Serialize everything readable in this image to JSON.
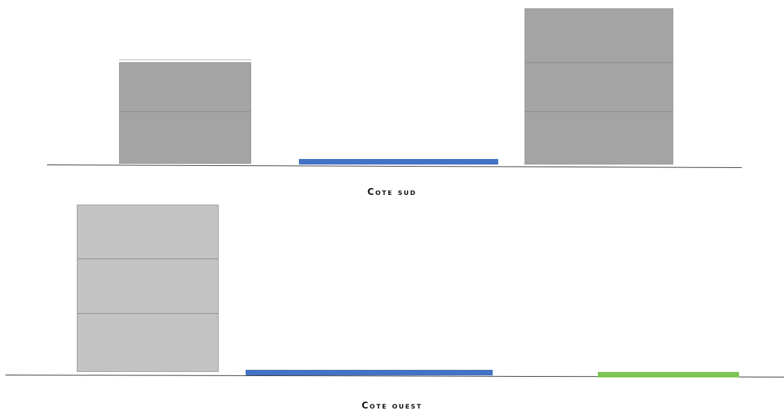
{
  "elevations": [
    {
      "caption": "Cote sud",
      "colors": {
        "building": "#a4a4a4",
        "strip": "#4472c4",
        "ground": "#333333"
      }
    },
    {
      "caption": "Cote ouest",
      "colors": {
        "building": "#c3c3c3",
        "strip_left": "#4472c4",
        "strip_right": "#7ec553",
        "ground": "#333333"
      }
    }
  ]
}
